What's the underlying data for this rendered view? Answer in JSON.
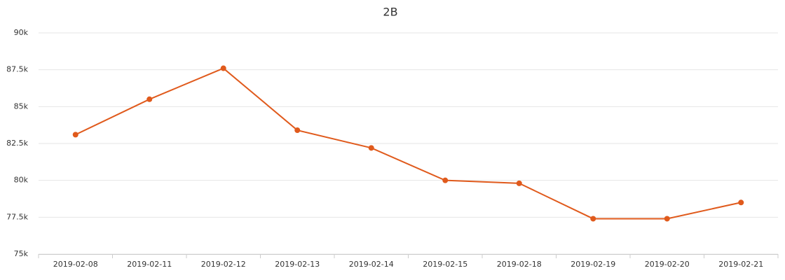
{
  "chart_data": {
    "type": "line",
    "title": "2B",
    "categories": [
      "2019-02-08",
      "2019-02-11",
      "2019-02-12",
      "2019-02-13",
      "2019-02-14",
      "2019-02-15",
      "2019-02-18",
      "2019-02-19",
      "2019-02-20",
      "2019-02-21"
    ],
    "series": [
      {
        "name": "2B",
        "color": "#e05a1c",
        "values": [
          83100,
          85500,
          87600,
          83400,
          82200,
          80000,
          79800,
          77400,
          77400,
          78500
        ]
      }
    ],
    "ylim": [
      75000,
      90000
    ],
    "yticks": [
      {
        "value": 75000,
        "label": "75k"
      },
      {
        "value": 77500,
        "label": "77.5k"
      },
      {
        "value": 80000,
        "label": "80k"
      },
      {
        "value": 82500,
        "label": "82.5k"
      },
      {
        "value": 85000,
        "label": "85k"
      },
      {
        "value": 87500,
        "label": "87.5k"
      },
      {
        "value": 90000,
        "label": "90k"
      }
    ],
    "grid": true
  }
}
